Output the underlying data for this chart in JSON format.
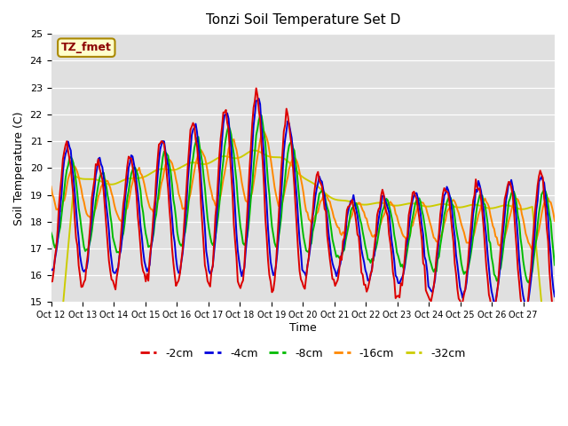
{
  "title": "Tonzi Soil Temperature Set D",
  "xlabel": "Time",
  "ylabel": "Soil Temperature (C)",
  "ylim": [
    15.0,
    25.0
  ],
  "yticks": [
    15.0,
    16.0,
    17.0,
    18.0,
    19.0,
    20.0,
    21.0,
    22.0,
    23.0,
    24.0,
    25.0
  ],
  "xtick_labels": [
    "Oct 12",
    "Oct 13",
    "Oct 14",
    "Oct 15",
    "Oct 16",
    "Oct 17",
    "Oct 18",
    "Oct 19",
    "Oct 20",
    "Oct 21",
    "Oct 22",
    "Oct 23",
    "Oct 24",
    "Oct 25",
    "Oct 26",
    "Oct 27"
  ],
  "colors": {
    "-2cm": "#dd0000",
    "-4cm": "#0000dd",
    "-8cm": "#00bb00",
    "-16cm": "#ff8800",
    "-32cm": "#cccc00"
  },
  "legend_label": "TZ_fmet",
  "background_color": "#e0e0e0",
  "linewidth": 1.4
}
